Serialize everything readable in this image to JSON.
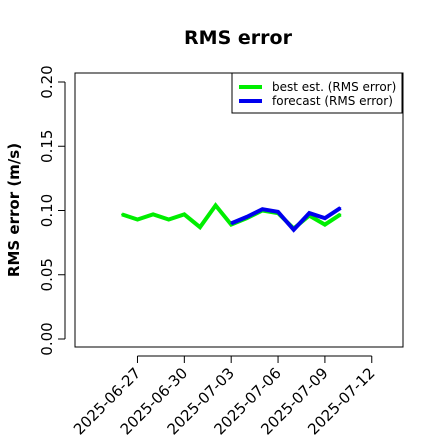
{
  "chart_data": {
    "type": "line",
    "title": "RMS error",
    "xlabel": "",
    "ylabel": "RMS error (m/s)",
    "ylim": [
      0,
      0.2
    ],
    "yticks": [
      "0.00",
      "0.05",
      "0.10",
      "0.15",
      "0.20"
    ],
    "yticks_values": [
      0,
      0.05,
      0.1,
      0.15,
      0.2
    ],
    "xlim": [
      "2025-06-23",
      "2025-07-14"
    ],
    "xticks": [
      "2025-06-27",
      "2025-06-30",
      "2025-07-03",
      "2025-07-06",
      "2025-07-09",
      "2025-07-12"
    ],
    "highlighted_xtick": "2025-07-03",
    "highlight_color": "#228b22",
    "grid": false,
    "legend_position": "top-right",
    "series": [
      {
        "name": "best est. (RMS error)",
        "color": "#00ee00",
        "x": [
          "2025-06-26",
          "2025-06-27",
          "2025-06-28",
          "2025-06-29",
          "2025-06-30",
          "2025-07-01",
          "2025-07-02",
          "2025-07-03",
          "2025-07-04",
          "2025-07-05",
          "2025-07-06",
          "2025-07-07",
          "2025-07-08",
          "2025-07-09",
          "2025-07-10"
        ],
        "values": [
          0.097,
          0.093,
          0.097,
          0.093,
          0.097,
          0.087,
          0.104,
          0.089,
          0.094,
          0.1,
          0.098,
          0.086,
          0.096,
          0.089,
          0.097
        ]
      },
      {
        "name": "forecast (RMS error)",
        "color": "#0000ee",
        "x": [
          "2025-07-03",
          "2025-07-04",
          "2025-07-05",
          "2025-07-06",
          "2025-07-07",
          "2025-07-08",
          "2025-07-09",
          "2025-07-10"
        ],
        "values": [
          0.09,
          0.095,
          0.101,
          0.099,
          0.085,
          0.098,
          0.094,
          0.102
        ]
      }
    ]
  }
}
